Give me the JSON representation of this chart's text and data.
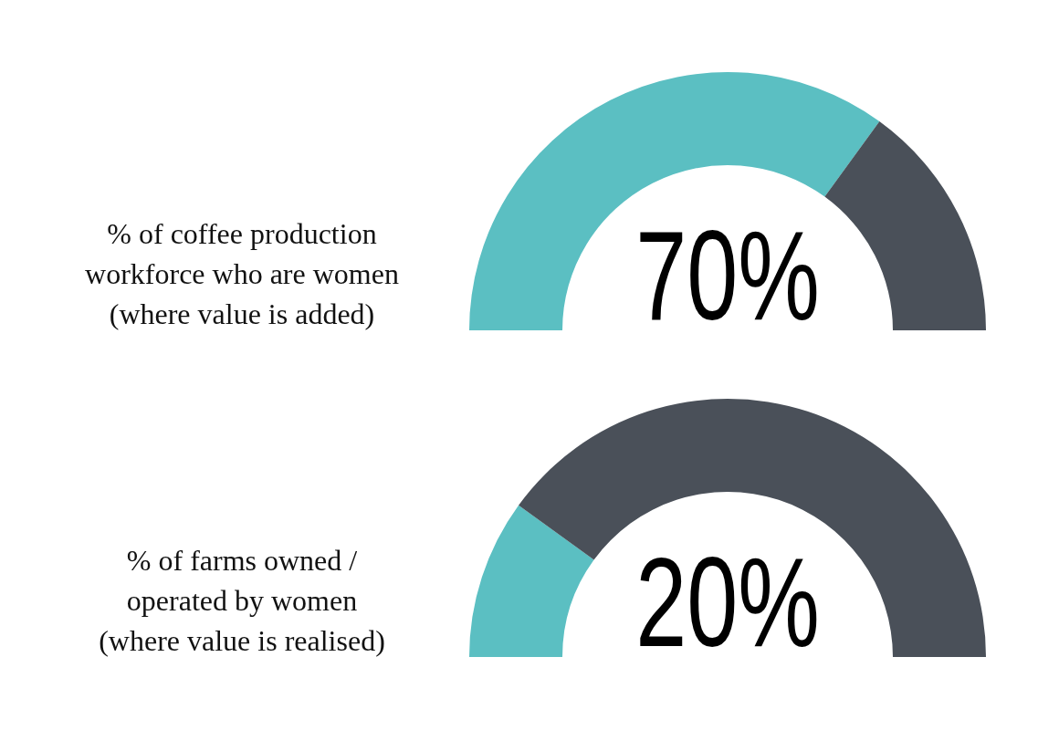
{
  "chart_data": [
    {
      "type": "donut",
      "title": "% of coffee production workforce who are women (where value is added)",
      "categories": [
        null,
        null
      ],
      "values": [
        70,
        30
      ],
      "colors": [
        "#5bbfc2",
        "#4a5059"
      ],
      "annotations": [
        "70%"
      ]
    },
    {
      "type": "donut",
      "title": "% of farms owned / operated by women (where value is realised)",
      "categories": [
        null,
        null
      ],
      "values": [
        20,
        80
      ],
      "colors": [
        "#5bbfc2",
        "#4a5059"
      ],
      "annotations": [
        "20%"
      ]
    }
  ]
}
